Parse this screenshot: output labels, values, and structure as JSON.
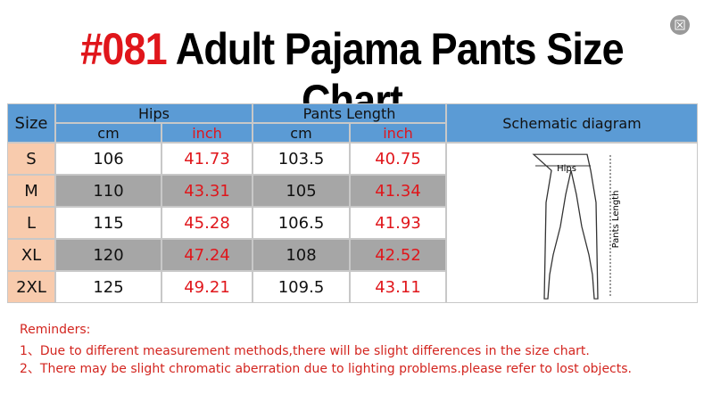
{
  "header": {
    "title_code": "#081",
    "title": "Adult Pajama Pants Size Chart"
  },
  "table": {
    "columns": {
      "size": "Size",
      "hips": "Hips",
      "pants_length": "Pants Length",
      "schematic": "Schematic diagram",
      "units": [
        "cm",
        "inch",
        "cm",
        "inch"
      ]
    },
    "rows": [
      [
        "S",
        106,
        41.73,
        103.5,
        40.75
      ],
      [
        "M",
        110,
        43.31,
        105,
        41.34
      ],
      [
        "L",
        115,
        45.28,
        106.5,
        41.93
      ],
      [
        "XL",
        120,
        47.24,
        108,
        42.52
      ],
      [
        "2XL",
        125,
        49.21,
        109.5,
        43.11
      ]
    ]
  },
  "diagram": {
    "hips_label": "Hips",
    "length_label": "Pants Length"
  },
  "reminders": {
    "title": "Reminders:",
    "items": [
      "1、Due to different measurement methods,there will be slight differences in the size chart.",
      "2、There may be slight chromatic aberration due to lighting problems.please refer to lost objects."
    ]
  }
}
